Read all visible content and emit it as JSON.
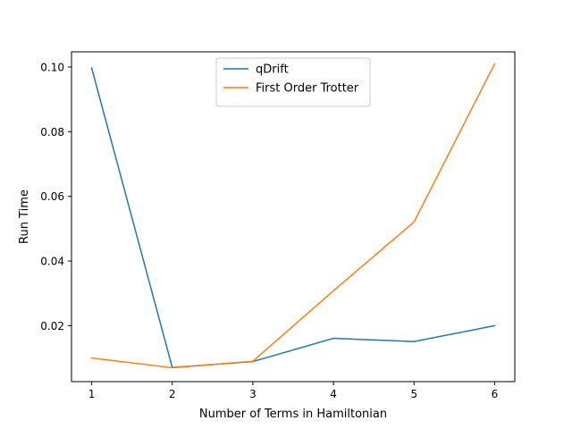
{
  "chart_data": {
    "type": "line",
    "title": "",
    "xlabel": "Number of Terms in Hamiltonian",
    "ylabel": "Run Time",
    "x": [
      1,
      2,
      3,
      4,
      5,
      6
    ],
    "xlim": [
      0.75,
      6.25
    ],
    "ylim": [
      0.0027,
      0.1047
    ],
    "xticks": [
      1,
      2,
      3,
      4,
      5,
      6
    ],
    "xtick_labels": [
      "1",
      "2",
      "3",
      "4",
      "5",
      "6"
    ],
    "yticks": [
      0.02,
      0.04,
      0.06,
      0.08,
      0.1
    ],
    "ytick_labels": [
      "0.02",
      "0.04",
      "0.06",
      "0.08",
      "0.10"
    ],
    "grid": false,
    "legend_position": "top-center",
    "series": [
      {
        "name": "qDrift",
        "color": "#1f77b4",
        "values": [
          0.0997,
          0.0071,
          0.0089,
          0.0161,
          0.0151,
          0.02
        ]
      },
      {
        "name": "First Order Trotter",
        "color": "#ff7f0e",
        "values": [
          0.01,
          0.007,
          0.009,
          0.0308,
          0.0521,
          0.101
        ]
      }
    ]
  }
}
